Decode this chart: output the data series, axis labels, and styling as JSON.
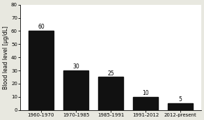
{
  "categories": [
    "1960-1970",
    "1970-1985",
    "1985-1991",
    "1991-2012",
    "2012-present"
  ],
  "values": [
    60,
    30,
    25,
    10,
    5
  ],
  "bar_color": "#111111",
  "bar_labels": [
    "60",
    "30",
    "25",
    "10",
    "5"
  ],
  "ylabel": "Blood lead level [μg/dL]",
  "ylim": [
    0,
    80
  ],
  "yticks": [
    0,
    10,
    20,
    30,
    40,
    50,
    60,
    70,
    80
  ],
  "fig_background_color": "#e8e8e0",
  "plot_background_color": "#ffffff",
  "tick_fontsize": 5.0,
  "ylabel_fontsize": 5.5,
  "bar_label_fontsize": 5.5,
  "bar_width": 0.72
}
